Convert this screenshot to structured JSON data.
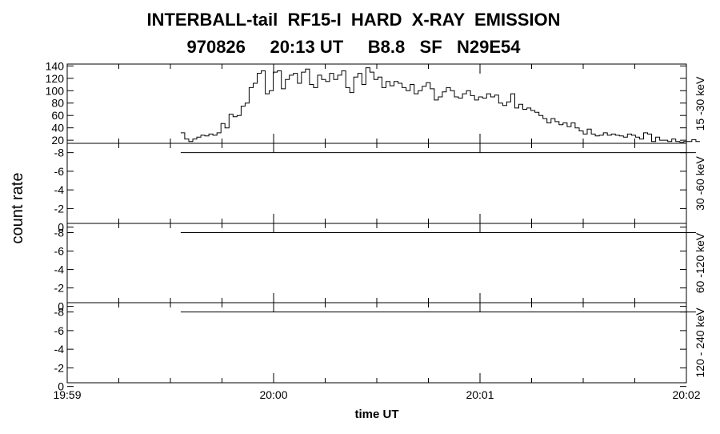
{
  "title_line1": "INTERBALL-tail  RF15-I  HARD  X-RAY  EMISSION",
  "title_line2": "970826     20:13 UT     B8.8   SF   N29E54",
  "chart_data": {
    "type": "line",
    "subtype": "step",
    "title": "INTERBALL-tail  RF15-I  HARD  X-RAY  EMISSION",
    "subtitle": "970826     20:13 UT     B8.8   SF   N29E54",
    "xlabel": "time UT",
    "ylabel": "count rate",
    "x_ticks": [
      "19:59",
      "20:00",
      "20:01",
      "20:02"
    ],
    "x_tick_minutes": [
      0,
      1,
      2,
      3
    ],
    "x_minor_step_minutes": 0.25,
    "xlim_minutes": [
      0,
      3
    ],
    "x_data_start_minutes": 0.55,
    "x_data_step_minutes": 0.0195,
    "grid": false,
    "panels": [
      {
        "label": "15 -30 keV",
        "ylim": [
          15,
          143
        ],
        "yticks": [
          20,
          40,
          60,
          80,
          100,
          120,
          140
        ],
        "ytick_labels": [
          "20",
          "40",
          "60",
          "80",
          "100",
          "120",
          "140"
        ],
        "values": [
          32,
          22,
          18,
          22,
          25,
          28,
          27,
          30,
          28,
          32,
          47,
          40,
          62,
          58,
          60,
          75,
          80,
          105,
          112,
          128,
          132,
          95,
          100,
          130,
          132,
          103,
          118,
          125,
          128,
          112,
          130,
          135,
          110,
          105,
          125,
          118,
          115,
          128,
          118,
          125,
          132,
          105,
          97,
          122,
          128,
          110,
          137,
          130,
          118,
          122,
          105,
          115,
          108,
          115,
          112,
          105,
          100,
          110,
          95,
          100,
          107,
          113,
          103,
          85,
          90,
          98,
          105,
          100,
          90,
          88,
          95,
          100,
          92,
          85,
          90,
          88,
          95,
          90,
          93,
          80,
          76,
          82,
          95,
          72,
          78,
          70,
          72,
          68,
          65,
          60,
          55,
          48,
          55,
          50,
          45,
          48,
          42,
          48,
          40,
          35,
          30,
          38,
          30,
          27,
          28,
          32,
          28,
          30,
          28,
          27,
          25,
          30,
          28,
          25,
          22,
          32,
          30,
          18,
          25,
          20,
          20,
          18,
          22,
          18,
          17,
          18,
          18,
          21,
          18
        ]
      },
      {
        "label": "30 -60 keV",
        "ylim": [
          -0.4,
          -9.0
        ],
        "yticks": [
          -8,
          -6,
          -4,
          -2,
          0
        ],
        "ytick_labels": [
          "-8",
          "-6",
          "-4",
          "-2",
          "0"
        ],
        "values": [
          -8.0,
          -8.0
        ]
      },
      {
        "label": "60 -120 keV",
        "ylim": [
          -0.4,
          -9.0
        ],
        "yticks": [
          -8,
          -6,
          -4,
          -2,
          0
        ],
        "ytick_labels": [
          "-8",
          "-6",
          "-4",
          "-2",
          "0"
        ],
        "values": [
          -8.0,
          -8.0
        ]
      },
      {
        "label": "120 - 240 keV",
        "ylim": [
          -0.4,
          -9.0
        ],
        "yticks": [
          -8,
          -6,
          -4,
          -2,
          0
        ],
        "ytick_labels": [
          "-8",
          "-6",
          "-4",
          "-2",
          "0"
        ],
        "values": [
          -8.0,
          -8.0
        ]
      }
    ]
  }
}
